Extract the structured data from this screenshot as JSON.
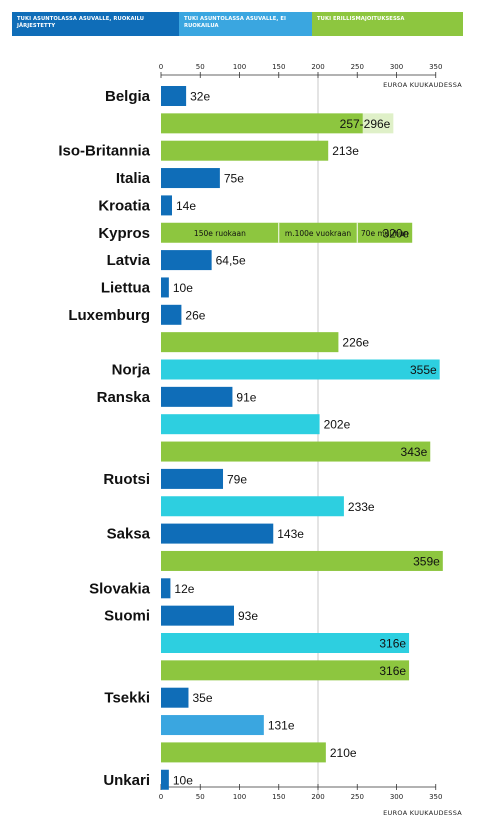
{
  "legend": [
    {
      "key": "a",
      "label": "Tuki asuntolassa asuvalle, ruokailu järjestetty",
      "color": "#0f6db8"
    },
    {
      "key": "b",
      "label": "Tuki asuntolassa asuvalle, ei ruokailua",
      "color": "#3aa6e0"
    },
    {
      "key": "c",
      "label": "Tuki erillismajoituksessa",
      "color": "#8dc63f"
    }
  ],
  "colors": {
    "dark_blue": "#0f6db8",
    "mid_blue": "#3aa6e0",
    "cyan": "#2dcfe0",
    "green": "#8dc63f",
    "light_green": "#dff0c8",
    "gridline": "#bbbbbb",
    "axis": "#333333"
  },
  "chart_data": {
    "type": "bar",
    "orientation": "horizontal",
    "unit_label": "EUROA KUUKAUDESSA",
    "xlim": [
      0,
      350
    ],
    "ticks": [
      0,
      50,
      100,
      150,
      200,
      250,
      300,
      350
    ],
    "reference_line": 200,
    "rows": [
      {
        "country": "Belgia",
        "value": 32,
        "label": "32e",
        "color": "dark_blue"
      },
      {
        "country": "",
        "value": 257,
        "value_max": 296,
        "label": "257-296e",
        "color": "green"
      },
      {
        "country": "Iso-Britannia",
        "value": 213,
        "label": "213e",
        "color": "green"
      },
      {
        "country": "Italia",
        "value": 75,
        "label": "75e",
        "color": "dark_blue"
      },
      {
        "country": "Kroatia",
        "value": 14,
        "label": "14e",
        "color": "dark_blue"
      },
      {
        "country": "Kypros",
        "value": 320,
        "label": "320e",
        "color": "green",
        "segments": [
          {
            "value": 150,
            "label": "150e ruokaan"
          },
          {
            "value": 100,
            "label": "m.100e vuokraan"
          },
          {
            "value": 70,
            "label": "70e muuhun"
          }
        ]
      },
      {
        "country": "Latvia",
        "value": 64.5,
        "label": "64,5e",
        "color": "dark_blue"
      },
      {
        "country": "Liettua",
        "value": 10,
        "label": "10e",
        "color": "dark_blue"
      },
      {
        "country": "Luxemburg",
        "value": 26,
        "label": "26e",
        "color": "dark_blue"
      },
      {
        "country": "",
        "value": 226,
        "label": "226e",
        "color": "green"
      },
      {
        "country": "Norja",
        "value": 355,
        "label": "355e",
        "color": "cyan"
      },
      {
        "country": "Ranska",
        "value": 91,
        "label": "91e",
        "color": "dark_blue"
      },
      {
        "country": "",
        "value": 202,
        "label": "202e",
        "color": "cyan"
      },
      {
        "country": "",
        "value": 343,
        "label": "343e",
        "color": "green"
      },
      {
        "country": "Ruotsi",
        "value": 79,
        "label": "79e",
        "color": "dark_blue"
      },
      {
        "country": "",
        "value": 233,
        "label": "233e",
        "color": "cyan"
      },
      {
        "country": "Saksa",
        "value": 143,
        "label": "143e",
        "color": "dark_blue"
      },
      {
        "country": "",
        "value": 359,
        "label": "359e",
        "color": "green"
      },
      {
        "country": "Slovakia",
        "value": 12,
        "label": "12e",
        "color": "dark_blue"
      },
      {
        "country": "Suomi",
        "value": 93,
        "label": "93e",
        "color": "dark_blue"
      },
      {
        "country": "",
        "value": 316,
        "label": "316e",
        "color": "cyan"
      },
      {
        "country": "",
        "value": 316,
        "label": "316e",
        "color": "green"
      },
      {
        "country": "Tsekki",
        "value": 35,
        "label": "35e",
        "color": "dark_blue"
      },
      {
        "country": "",
        "value": 131,
        "label": "131e",
        "color": "mid_blue"
      },
      {
        "country": "",
        "value": 210,
        "label": "210e",
        "color": "green"
      },
      {
        "country": "Unkari",
        "value": 10,
        "label": "10e",
        "color": "dark_blue"
      }
    ]
  }
}
